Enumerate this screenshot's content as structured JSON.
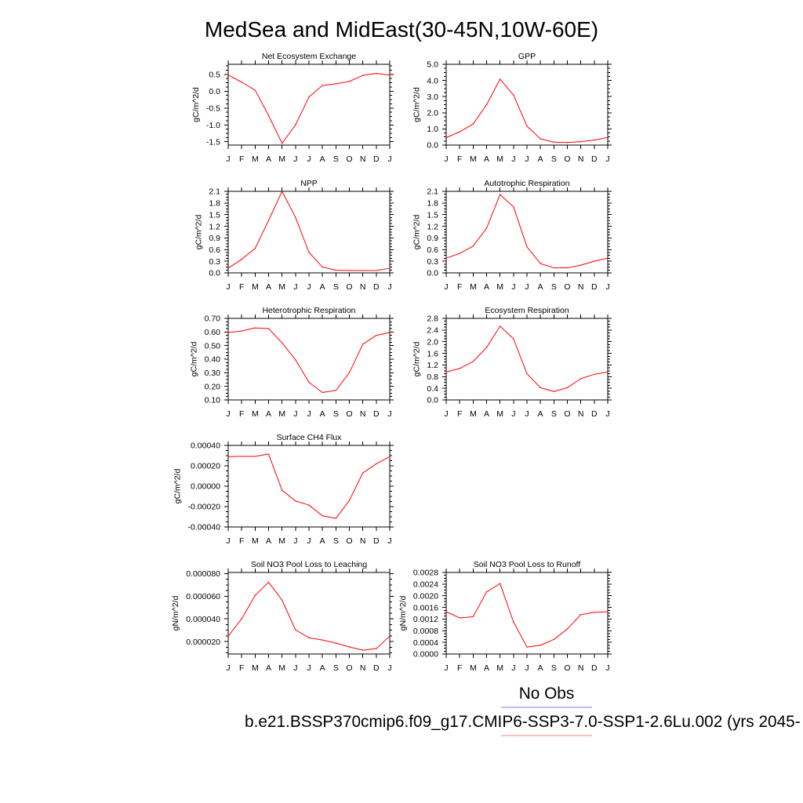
{
  "title": "MedSea and MidEast(30-45N,10W-60E)",
  "chart_data": [
    {
      "type": "line",
      "title": "Net Ecosystem Exchange",
      "ylabel": "gC/m^2/d",
      "categories": [
        "J",
        "F",
        "M",
        "A",
        "M",
        "J",
        "J",
        "A",
        "S",
        "O",
        "N",
        "D",
        "J"
      ],
      "ylim": [
        -1.6,
        0.8
      ],
      "yticks": [
        0.5,
        0.0,
        -0.5,
        -1.0,
        -1.5
      ],
      "ytick_labels": [
        "0.5",
        "0.0",
        "-0.5",
        "-1.0",
        "-1.5"
      ],
      "series": [
        {
          "color": "#ff0000",
          "values": [
            0.48,
            0.27,
            0.03,
            -0.72,
            -1.55,
            -1.0,
            -0.17,
            0.17,
            0.22,
            0.29,
            0.47,
            0.53,
            0.48
          ]
        }
      ]
    },
    {
      "type": "line",
      "title": "GPP",
      "ylabel": "gC/m^2/d",
      "categories": [
        "J",
        "F",
        "M",
        "A",
        "M",
        "J",
        "J",
        "A",
        "S",
        "O",
        "N",
        "D",
        "J"
      ],
      "ylim": [
        0,
        5
      ],
      "yticks": [
        5,
        4,
        3,
        2,
        1,
        0
      ],
      "ytick_labels": [
        "5.0",
        "4.0",
        "3.0",
        "2.0",
        "1.0",
        "0.0"
      ],
      "series": [
        {
          "color": "#ff0000",
          "values": [
            0.46,
            0.82,
            1.3,
            2.5,
            4.08,
            3.1,
            1.17,
            0.39,
            0.18,
            0.16,
            0.21,
            0.31,
            0.47
          ]
        }
      ]
    },
    {
      "type": "line",
      "title": "NPP",
      "ylabel": "gC/m^2/d",
      "categories": [
        "J",
        "F",
        "M",
        "A",
        "M",
        "J",
        "J",
        "A",
        "S",
        "O",
        "N",
        "D",
        "J"
      ],
      "ylim": [
        0,
        2.1
      ],
      "yticks": [
        2.1,
        1.8,
        1.5,
        1.2,
        0.9,
        0.6,
        0.3,
        0.0
      ],
      "ytick_labels": [
        "2.1",
        "1.8",
        "1.5",
        "1.2",
        "0.9",
        "0.6",
        "0.3",
        "0.0"
      ],
      "series": [
        {
          "color": "#ff0000",
          "values": [
            0.12,
            0.35,
            0.63,
            1.35,
            2.1,
            1.43,
            0.53,
            0.15,
            0.07,
            0.06,
            0.06,
            0.06,
            0.12
          ]
        }
      ]
    },
    {
      "type": "line",
      "title": "Autotrophic Respiration",
      "ylabel": "gC/m^2/d",
      "categories": [
        "J",
        "F",
        "M",
        "A",
        "M",
        "J",
        "J",
        "A",
        "S",
        "O",
        "N",
        "D",
        "J"
      ],
      "ylim": [
        0,
        2.1
      ],
      "yticks": [
        2.1,
        1.8,
        1.5,
        1.2,
        0.9,
        0.6,
        0.3,
        0.0
      ],
      "ytick_labels": [
        "2.1",
        "1.8",
        "1.5",
        "1.2",
        "0.9",
        "0.6",
        "0.3",
        "0.0"
      ],
      "series": [
        {
          "color": "#ff0000",
          "values": [
            0.38,
            0.5,
            0.69,
            1.15,
            2.02,
            1.7,
            0.67,
            0.24,
            0.13,
            0.13,
            0.2,
            0.3,
            0.38
          ]
        }
      ]
    },
    {
      "type": "line",
      "title": "Heterotrophic Respiration",
      "ylabel": "gC/m^2/d",
      "categories": [
        "J",
        "F",
        "M",
        "A",
        "M",
        "J",
        "J",
        "A",
        "S",
        "O",
        "N",
        "D",
        "J"
      ],
      "ylim": [
        0.1,
        0.7
      ],
      "yticks": [
        0.7,
        0.6,
        0.5,
        0.4,
        0.3,
        0.2,
        0.1
      ],
      "ytick_labels": [
        "0.70",
        "0.60",
        "0.50",
        "0.40",
        "0.30",
        "0.20",
        "0.10"
      ],
      "series": [
        {
          "color": "#ff0000",
          "values": [
            0.596,
            0.607,
            0.63,
            0.625,
            0.52,
            0.395,
            0.23,
            0.155,
            0.17,
            0.3,
            0.51,
            0.575,
            0.596
          ]
        }
      ]
    },
    {
      "type": "line",
      "title": "Ecosystem Respiration",
      "ylabel": "gC/m^2/d",
      "categories": [
        "J",
        "F",
        "M",
        "A",
        "M",
        "J",
        "J",
        "A",
        "S",
        "O",
        "N",
        "D",
        "J"
      ],
      "ylim": [
        0,
        2.8
      ],
      "yticks": [
        2.8,
        2.4,
        2.0,
        1.6,
        1.2,
        0.8,
        0.4,
        0.0
      ],
      "ytick_labels": [
        "2.8",
        "2.4",
        "2.0",
        "1.6",
        "1.2",
        "0.8",
        "0.4",
        "0.0"
      ],
      "series": [
        {
          "color": "#ff0000",
          "values": [
            0.96,
            1.08,
            1.32,
            1.8,
            2.53,
            2.1,
            0.9,
            0.42,
            0.29,
            0.42,
            0.73,
            0.88,
            0.96
          ]
        }
      ]
    },
    {
      "type": "line",
      "title": "Surface CH4 Flux",
      "ylabel": "gC/m^2/d",
      "categories": [
        "J",
        "F",
        "M",
        "A",
        "M",
        "J",
        "J",
        "A",
        "S",
        "O",
        "N",
        "D",
        "J"
      ],
      "ylim": [
        -0.0004,
        0.0004
      ],
      "yticks": [
        0.0004,
        0.0002,
        0.0,
        -0.0002,
        -0.0004
      ],
      "ytick_labels": [
        "0.00040",
        "0.00020",
        "0.00000",
        "-0.00020",
        "-0.00040"
      ],
      "series": [
        {
          "color": "#ff0000",
          "values": [
            0.00029,
            0.000292,
            0.000292,
            0.000315,
            -4e-05,
            -0.000145,
            -0.000185,
            -0.00029,
            -0.000315,
            -0.00014,
            0.00013,
            0.00022,
            0.00029
          ]
        }
      ]
    },
    {
      "type": "line",
      "title": "Soil NO3 Pool Loss to Leaching",
      "ylabel": "gN/m^2/d",
      "categories": [
        "J",
        "F",
        "M",
        "A",
        "M",
        "J",
        "J",
        "A",
        "S",
        "O",
        "N",
        "D",
        "J"
      ],
      "ylim": [
        9e-06,
        8.1e-05
      ],
      "yticks": [
        8e-05,
        6e-05,
        4e-05,
        2e-05
      ],
      "ytick_labels": [
        "0.000080",
        "0.000060",
        "0.000040",
        "0.000020"
      ],
      "series": [
        {
          "color": "#ff0000",
          "values": [
            2.48e-05,
            4e-05,
            6.07e-05,
            7.24e-05,
            5.66e-05,
            3.03e-05,
            2.34e-05,
            2.14e-05,
            1.86e-05,
            1.52e-05,
            1.24e-05,
            1.38e-05,
            2.48e-05
          ]
        }
      ]
    },
    {
      "type": "line",
      "title": "Soil NO3 Pool Loss to Runoff",
      "ylabel": "gN/m^2/d",
      "categories": [
        "J",
        "F",
        "M",
        "A",
        "M",
        "J",
        "J",
        "A",
        "S",
        "O",
        "N",
        "D",
        "J"
      ],
      "ylim": [
        0,
        0.0028
      ],
      "yticks": [
        0.0028,
        0.0024,
        0.002,
        0.0016,
        0.0012,
        0.0008,
        0.0004,
        0.0
      ],
      "ytick_labels": [
        "0.0028",
        "0.0024",
        "0.0020",
        "0.0016",
        "0.0012",
        "0.0008",
        "0.0004",
        "0.0000"
      ],
      "series": [
        {
          "color": "#ff0000",
          "values": [
            0.00145,
            0.00124,
            0.00128,
            0.00213,
            0.00242,
            0.0011,
            0.00024,
            0.0003,
            0.0005,
            0.00086,
            0.00135,
            0.00143,
            0.00145
          ]
        }
      ]
    }
  ],
  "legend": {
    "obs_label": "No Obs",
    "obs_color": "#7f7fff",
    "model_label": "b.e21.BSSP370cmip6.f09_g17.CMIP6-SSP3-7.0-SSP1-2.6Lu.002 (yrs 2045-",
    "model_color": "#ff7f7f"
  }
}
